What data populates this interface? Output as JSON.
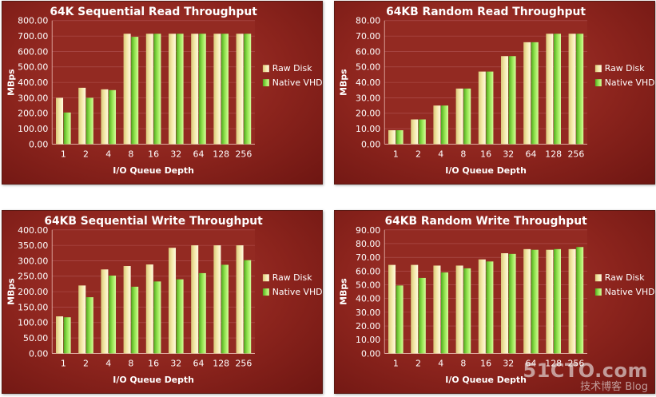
{
  "legend": {
    "raw_label": "Raw Disk",
    "vhd_label": "Native VHD"
  },
  "watermark": {
    "main": "51CTO.com",
    "sub": "技术博客  Blog"
  },
  "colors": {
    "raw_disk": "#f3e7a6",
    "native_vhd": "#8ee04a",
    "panel_bg": "#8c241d"
  },
  "chart_data": [
    {
      "type": "bar",
      "title": "64K Sequential Read Throughput",
      "xlabel": "I/O Queue Depth",
      "ylabel": "MBps",
      "categories": [
        "1",
        "2",
        "4",
        "8",
        "16",
        "32",
        "64",
        "128",
        "256"
      ],
      "ylim": [
        0,
        800
      ],
      "yticks": [
        "0.00",
        "100.00",
        "200.00",
        "300.00",
        "400.00",
        "500.00",
        "600.00",
        "700.00",
        "800.00"
      ],
      "grid": true,
      "legend_position": "right",
      "series": [
        {
          "name": "Raw Disk",
          "values": [
            300,
            365,
            355,
            715,
            715,
            715,
            715,
            715,
            715
          ]
        },
        {
          "name": "Native VHD",
          "values": [
            205,
            300,
            350,
            695,
            715,
            715,
            715,
            715,
            715
          ]
        }
      ]
    },
    {
      "type": "bar",
      "title": "64KB Random Read Throughput",
      "xlabel": "I/O Queue Depth",
      "ylabel": "MBps",
      "categories": [
        "1",
        "2",
        "4",
        "8",
        "16",
        "32",
        "64",
        "128",
        "256"
      ],
      "ylim": [
        0,
        80
      ],
      "yticks": [
        "0.00",
        "10.00",
        "20.00",
        "30.00",
        "40.00",
        "50.00",
        "60.00",
        "70.00",
        "80.00"
      ],
      "grid": true,
      "legend_position": "right",
      "series": [
        {
          "name": "Raw Disk",
          "values": [
            9,
            16,
            25,
            36,
            47,
            57,
            66,
            71.5,
            71.5
          ]
        },
        {
          "name": "Native VHD",
          "values": [
            9,
            16,
            25,
            36,
            47,
            57,
            66,
            71.5,
            71.5
          ]
        }
      ]
    },
    {
      "type": "bar",
      "title": "64KB Sequential Write Throughput",
      "xlabel": "I/O Queue Depth",
      "ylabel": "MBps",
      "categories": [
        "1",
        "2",
        "4",
        "8",
        "16",
        "32",
        "64",
        "128",
        "256"
      ],
      "ylim": [
        0,
        400
      ],
      "yticks": [
        "0.00",
        "50.00",
        "100.00",
        "150.00",
        "200.00",
        "250.00",
        "300.00",
        "350.00",
        "400.00"
      ],
      "grid": true,
      "legend_position": "right",
      "series": [
        {
          "name": "Raw Disk",
          "values": [
            120,
            220,
            272,
            283,
            288,
            342,
            350,
            350,
            350
          ]
        },
        {
          "name": "Native VHD",
          "values": [
            117,
            182,
            252,
            216,
            233,
            240,
            260,
            287,
            302
          ]
        }
      ]
    },
    {
      "type": "bar",
      "title": "64KB Random Write Throughput",
      "xlabel": "I/O Queue Depth",
      "ylabel": "MBps",
      "categories": [
        "1",
        "2",
        "4",
        "8",
        "16",
        "32",
        "64",
        "128",
        "256"
      ],
      "ylim": [
        0,
        90
      ],
      "yticks": [
        "0.00",
        "10.00",
        "20.00",
        "30.00",
        "40.00",
        "50.00",
        "60.00",
        "70.00",
        "80.00",
        "90.00"
      ],
      "grid": true,
      "legend_position": "right",
      "series": [
        {
          "name": "Raw Disk",
          "values": [
            64.5,
            64.5,
            64,
            64,
            68.5,
            73,
            76,
            75.5,
            76
          ]
        },
        {
          "name": "Native VHD",
          "values": [
            49.5,
            55,
            59,
            62,
            67,
            72.5,
            75.5,
            76,
            77.5
          ]
        }
      ]
    }
  ]
}
